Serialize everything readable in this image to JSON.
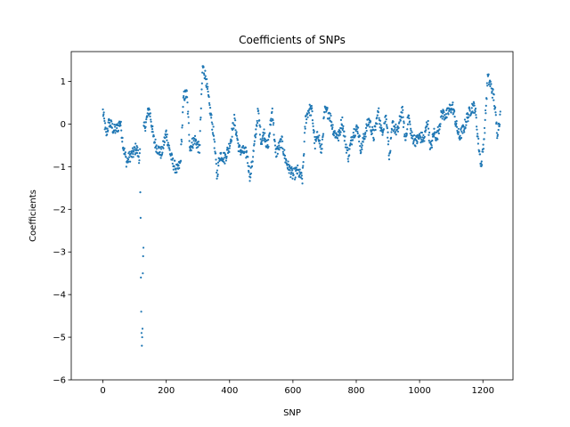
{
  "chart_data": {
    "type": "scatter",
    "title": "Coefficients of SNPs",
    "xlabel": "SNP",
    "ylabel": "Coefficients",
    "xlim": [
      -100,
      1295
    ],
    "ylim": [
      -6,
      1.7
    ],
    "xticks": [
      0,
      200,
      400,
      600,
      800,
      1000,
      1200
    ],
    "yticks": [
      -6,
      -5,
      -4,
      -3,
      -2,
      -1,
      0,
      1
    ],
    "grid": false,
    "color": "#1f77b4",
    "segments": [
      [
        0,
        0.3
      ],
      [
        10,
        -0.25
      ],
      [
        20,
        0.05
      ],
      [
        35,
        -0.15
      ],
      [
        45,
        -0.1
      ],
      [
        55,
        0.05
      ],
      [
        65,
        -0.55
      ],
      [
        75,
        -0.9
      ],
      [
        85,
        -0.75
      ],
      [
        95,
        -0.7
      ],
      [
        105,
        -0.55
      ],
      [
        115,
        -0.8
      ],
      [
        125,
        -0.2
      ],
      [
        135,
        0.0
      ],
      [
        145,
        0.35
      ],
      [
        150,
        0.2
      ],
      [
        160,
        -0.35
      ],
      [
        170,
        -0.55
      ],
      [
        185,
        -0.7
      ],
      [
        200,
        -0.2
      ],
      [
        210,
        -0.6
      ],
      [
        220,
        -0.9
      ],
      [
        235,
        -1.1
      ],
      [
        245,
        -0.9
      ],
      [
        255,
        0.65
      ],
      [
        265,
        0.7
      ],
      [
        275,
        -0.55
      ],
      [
        290,
        -0.35
      ],
      [
        305,
        -0.6
      ],
      [
        315,
        1.35
      ],
      [
        325,
        1.1
      ],
      [
        335,
        0.5
      ],
      [
        350,
        -0.25
      ],
      [
        360,
        -1.2
      ],
      [
        370,
        -0.7
      ],
      [
        385,
        -0.8
      ],
      [
        400,
        -0.5
      ],
      [
        415,
        0.1
      ],
      [
        430,
        -0.6
      ],
      [
        445,
        -0.65
      ],
      [
        455,
        -0.7
      ],
      [
        465,
        -1.25
      ],
      [
        480,
        -0.4
      ],
      [
        490,
        0.3
      ],
      [
        500,
        -0.4
      ],
      [
        510,
        -0.2
      ],
      [
        520,
        -0.6
      ],
      [
        535,
        0.35
      ],
      [
        545,
        -0.7
      ],
      [
        555,
        -0.55
      ],
      [
        565,
        -0.4
      ],
      [
        575,
        -0.8
      ],
      [
        585,
        -1.0
      ],
      [
        600,
        -1.2
      ],
      [
        615,
        -1.1
      ],
      [
        630,
        -1.3
      ],
      [
        640,
        0.1
      ],
      [
        650,
        0.35
      ],
      [
        660,
        0.3
      ],
      [
        670,
        -0.5
      ],
      [
        680,
        -0.2
      ],
      [
        690,
        -0.7
      ],
      [
        700,
        0.3
      ],
      [
        715,
        0.25
      ],
      [
        730,
        -0.2
      ],
      [
        745,
        -0.3
      ],
      [
        755,
        0.1
      ],
      [
        765,
        -0.4
      ],
      [
        775,
        -0.75
      ],
      [
        790,
        -0.2
      ],
      [
        805,
        -0.1
      ],
      [
        815,
        -0.6
      ],
      [
        825,
        -0.3
      ],
      [
        840,
        0.1
      ],
      [
        855,
        -0.3
      ],
      [
        870,
        0.3
      ],
      [
        880,
        -0.2
      ],
      [
        895,
        0.2
      ],
      [
        905,
        -0.8
      ],
      [
        915,
        0.0
      ],
      [
        930,
        -0.2
      ],
      [
        945,
        0.35
      ],
      [
        955,
        -0.4
      ],
      [
        965,
        0.2
      ],
      [
        975,
        -0.3
      ],
      [
        990,
        -0.4
      ],
      [
        1000,
        -0.3
      ],
      [
        1015,
        -0.35
      ],
      [
        1025,
        0.1
      ],
      [
        1035,
        -0.6
      ],
      [
        1045,
        -0.2
      ],
      [
        1055,
        -0.3
      ],
      [
        1070,
        0.25
      ],
      [
        1085,
        0.2
      ],
      [
        1095,
        0.35
      ],
      [
        1105,
        0.4
      ],
      [
        1115,
        0.0
      ],
      [
        1125,
        -0.3
      ],
      [
        1140,
        -0.1
      ],
      [
        1150,
        0.15
      ],
      [
        1165,
        0.4
      ],
      [
        1175,
        0.4
      ],
      [
        1185,
        -0.4
      ],
      [
        1195,
        -1.0
      ],
      [
        1205,
        -0.2
      ],
      [
        1215,
        1.1
      ],
      [
        1225,
        0.9
      ],
      [
        1235,
        0.6
      ],
      [
        1245,
        -0.2
      ],
      [
        1255,
        0.2
      ]
    ],
    "extreme_points": [
      [
        118,
        -1.6
      ],
      [
        119,
        -2.2
      ],
      [
        120,
        -3.6
      ],
      [
        121,
        -4.4
      ],
      [
        122,
        -4.9
      ],
      [
        123,
        -5.2
      ],
      [
        124,
        -5.0
      ],
      [
        125,
        -4.8
      ],
      [
        126,
        -3.5
      ],
      [
        127,
        -3.1
      ],
      [
        128,
        -2.9
      ]
    ]
  }
}
